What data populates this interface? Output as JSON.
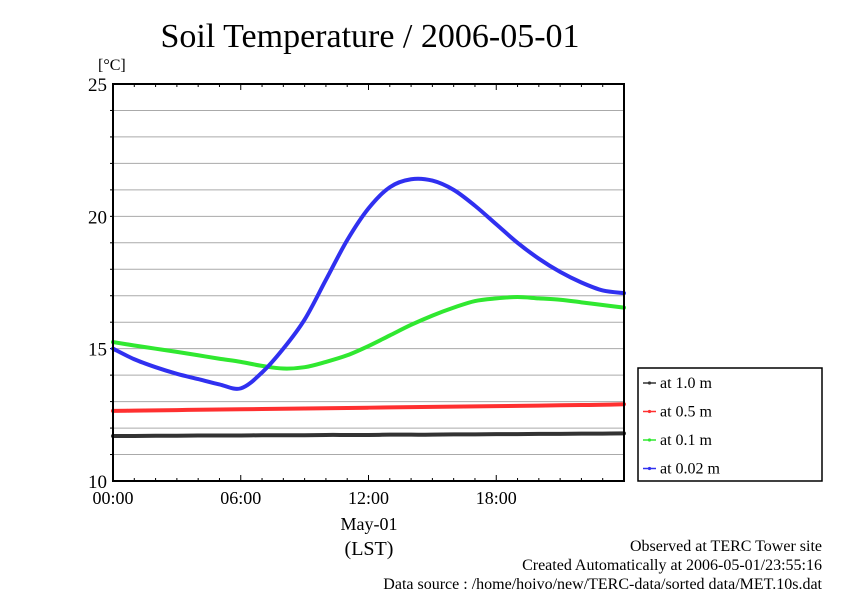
{
  "chart_data": {
    "type": "line",
    "title": "Soil Temperature / 2006-05-01",
    "ylabel": "[°C]",
    "ylim": [
      10,
      25
    ],
    "yticks": [
      "10",
      "15",
      "20",
      "25"
    ],
    "xlim": [
      0,
      24
    ],
    "xticks": [
      "00:00",
      "06:00",
      "12:00",
      "18:00"
    ],
    "xlabel_date": "May-01",
    "xlabel": "(LST)",
    "grid": true,
    "legend_placement": "right",
    "x": [
      0,
      1,
      2,
      3,
      4,
      5,
      6,
      7,
      8,
      9,
      10,
      11,
      12,
      13,
      14,
      15,
      16,
      17,
      18,
      19,
      20,
      21,
      22,
      23,
      24
    ],
    "series": [
      {
        "name": "at 1.0 m",
        "color": "#333333",
        "values": [
          11.7,
          11.7,
          11.71,
          11.71,
          11.72,
          11.72,
          11.72,
          11.73,
          11.73,
          11.73,
          11.74,
          11.74,
          11.74,
          11.75,
          11.75,
          11.75,
          11.76,
          11.76,
          11.77,
          11.77,
          11.78,
          11.78,
          11.79,
          11.79,
          11.8
        ]
      },
      {
        "name": "at 0.5 m",
        "color": "#ff3030",
        "values": [
          12.65,
          12.66,
          12.67,
          12.68,
          12.69,
          12.7,
          12.71,
          12.72,
          12.73,
          12.74,
          12.75,
          12.76,
          12.77,
          12.78,
          12.79,
          12.8,
          12.81,
          12.82,
          12.83,
          12.84,
          12.85,
          12.86,
          12.87,
          12.88,
          12.9
        ]
      },
      {
        "name": "at 0.1 m",
        "color": "#30e830",
        "values": [
          15.25,
          15.12,
          15.0,
          14.88,
          14.75,
          14.62,
          14.5,
          14.35,
          14.25,
          14.3,
          14.5,
          14.75,
          15.1,
          15.5,
          15.9,
          16.25,
          16.55,
          16.8,
          16.9,
          16.95,
          16.9,
          16.85,
          16.75,
          16.65,
          16.55
        ]
      },
      {
        "name": "at 0.02 m",
        "color": "#3030f0",
        "values": [
          15.0,
          14.6,
          14.3,
          14.05,
          13.85,
          13.65,
          13.5,
          14.1,
          15.0,
          16.1,
          17.6,
          19.1,
          20.3,
          21.1,
          21.4,
          21.35,
          21.0,
          20.4,
          19.7,
          19.0,
          18.4,
          17.9,
          17.5,
          17.2,
          17.1
        ]
      }
    ]
  },
  "footer": {
    "observed": "Observed at TERC Tower site",
    "created": "Created Automatically at 2006-05-01/23:55:16",
    "source": "Data source : /home/hoivo/new/TERC-data/sorted  data/MET.10s.dat"
  }
}
